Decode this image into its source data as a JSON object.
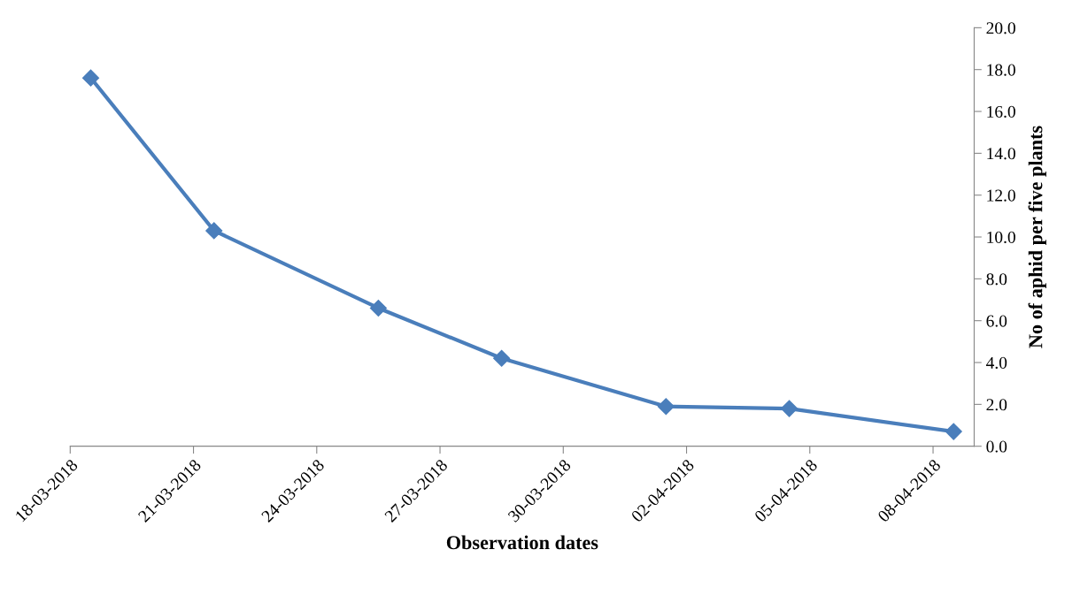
{
  "chart_data": {
    "type": "line",
    "xlabel": "Observation dates",
    "ylabel": "No of aphid per five plants",
    "x": [
      "2018-03-18T12:00",
      "2018-03-21T12:00",
      "2018-03-25T12:00",
      "2018-03-28T12:00",
      "2018-04-01T12:00",
      "2018-04-04T12:00",
      "2018-04-08T12:00"
    ],
    "series": [
      {
        "color": "#4a7ebb",
        "values": [
          17.6,
          10.3,
          6.6,
          4.2,
          1.9,
          1.8,
          0.7
        ]
      }
    ],
    "xlim": [
      "2018-03-18",
      "2018-04-09"
    ],
    "xticks": [
      {
        "value": "2018-03-18",
        "label": "18-03-2018"
      },
      {
        "value": "2018-03-21",
        "label": "21-03-2018"
      },
      {
        "value": "2018-03-24",
        "label": "24-03-2018"
      },
      {
        "value": "2018-03-27",
        "label": "27-03-2018"
      },
      {
        "value": "2018-03-30",
        "label": "30-03-2018"
      },
      {
        "value": "2018-04-02",
        "label": "02-04-2018"
      },
      {
        "value": "2018-04-05",
        "label": "05-04-2018"
      },
      {
        "value": "2018-04-08",
        "label": "08-04-2018"
      }
    ],
    "ylim": [
      0,
      20
    ],
    "yticks": [
      {
        "value": 0,
        "label": "0.0"
      },
      {
        "value": 2,
        "label": "2.0"
      },
      {
        "value": 4,
        "label": "4.0"
      },
      {
        "value": 6,
        "label": "6.0"
      },
      {
        "value": 8,
        "label": "8.0"
      },
      {
        "value": 10,
        "label": "10.0"
      },
      {
        "value": 12,
        "label": "12.0"
      },
      {
        "value": 14,
        "label": "14.0"
      },
      {
        "value": 16,
        "label": "16.0"
      },
      {
        "value": 18,
        "label": "18.0"
      },
      {
        "value": 20,
        "label": "20.0"
      }
    ],
    "marker": "diamond",
    "line_style": "solid"
  }
}
